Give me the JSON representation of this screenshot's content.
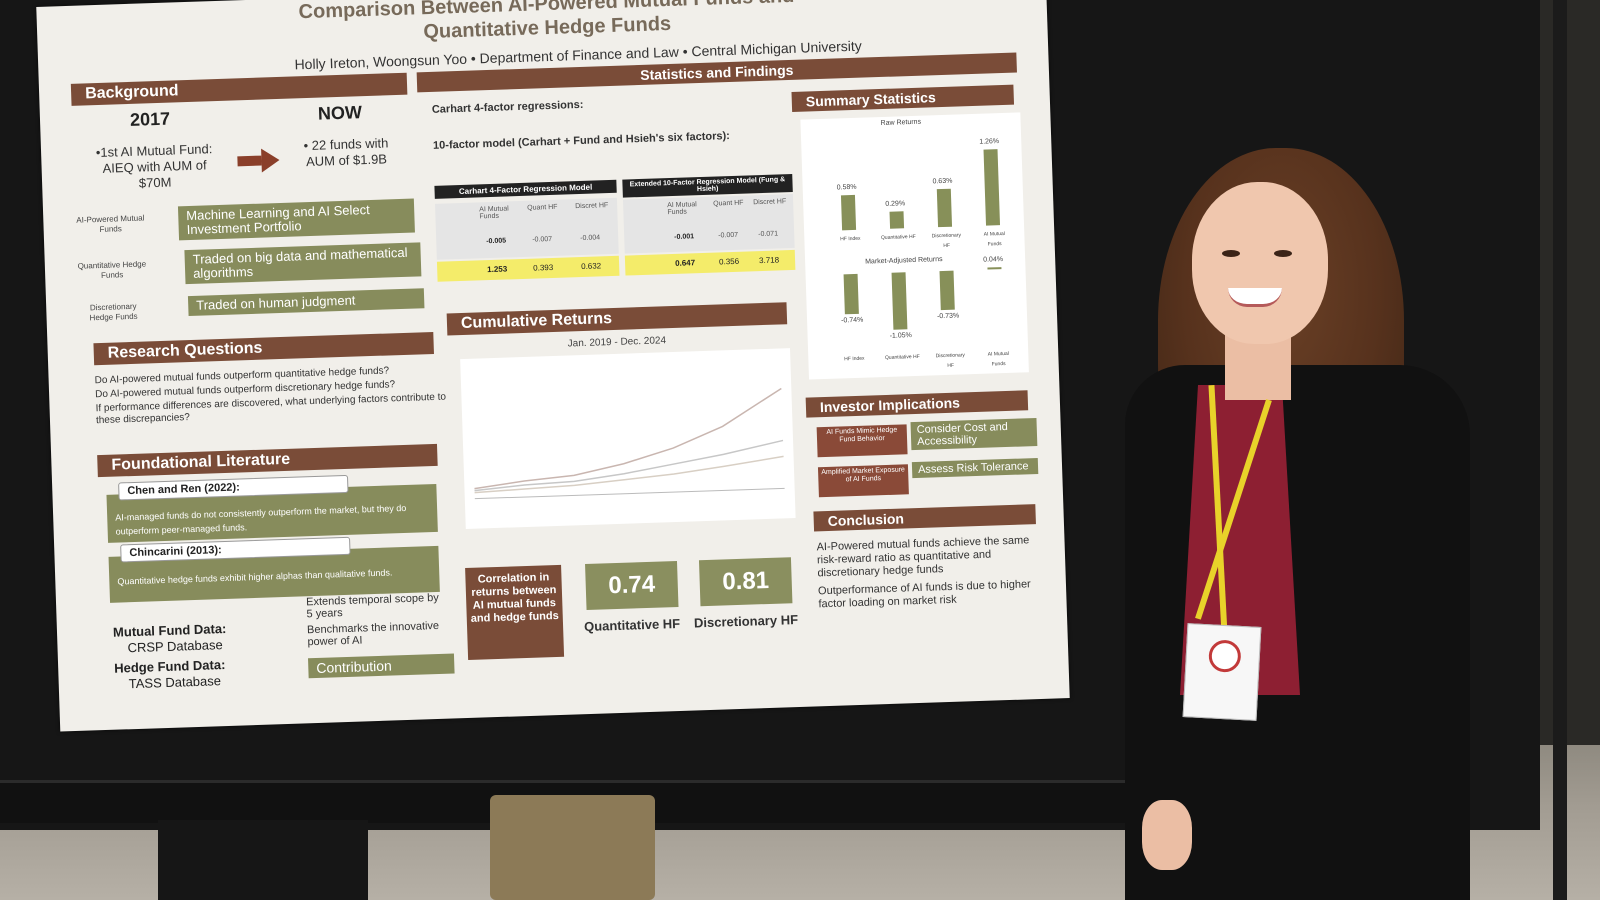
{
  "poster": {
    "title_line1": "Comparison Between AI-Powered Mutual Funds and",
    "title_line2": "Quantitative Hedge Funds",
    "authors": "Holly Ireton, Woongsun Yoo  •  Department of Finance and Law  •  Central Michigan University",
    "background": {
      "heading": "Background",
      "year_then": "2017",
      "year_now": "NOW",
      "then_text": "•1st AI Mutual Fund: AIEQ with AUM of $70M",
      "now_text": "• 22 funds with AUM of $1.9B",
      "rows": [
        {
          "label": "AI-Powered Mutual Funds",
          "text": "Machine Learning and AI Select Investment Portfolio"
        },
        {
          "label": "Quantitative Hedge Funds",
          "text": "Traded on big data and mathematical algorithms"
        },
        {
          "label": "Discretionary Hedge Funds",
          "text": "Traded on human judgment"
        }
      ]
    },
    "research": {
      "heading": "Research Questions",
      "questions": [
        "Do AI-powered mutual funds outperform quantitative hedge funds?",
        "Do AI-powered mutual funds outperform discretionary hedge funds?",
        "If performance differences are discovered, what underlying factors contribute to these discrepancies?"
      ]
    },
    "literature": {
      "heading": "Foundational Literature",
      "items": [
        {
          "cite": "Chen and Ren (2022):",
          "text": "AI-managed funds do not consistently outperform the market, but they do outperform peer-managed funds."
        },
        {
          "cite": "Chincarini (2013):",
          "text": "Quantitative hedge funds exhibit higher alphas than qualitative funds."
        }
      ]
    },
    "data": {
      "mutual_label": "Mutual Fund Data:",
      "mutual_source": "CRSP Database",
      "hedge_label": "Hedge Fund Data:",
      "hedge_source": "TASS Database",
      "contribution_points": [
        "Extends temporal scope by 5 years",
        "Benchmarks the innovative power of AI"
      ],
      "contribution_label": "Contribution"
    },
    "stats": {
      "heading": "Statistics and Findings",
      "carhart_label": "Carhart 4-factor regressions:",
      "tenfactor_label": "10-factor model (Carhart + Fund and Hsieh's six factors):",
      "table1_title": "Carhart 4-Factor Regression Model",
      "table2_title": "Extended 10-Factor Regression Model (Fung & Hsieh)",
      "table_cols": [
        "AI Mutual Funds",
        "Quant HF",
        "Discret HF"
      ],
      "table1_alpha": [
        "-0.005",
        "-0.007",
        "-0.004"
      ],
      "table1_beta": [
        "1.253",
        "0.393",
        "0.632"
      ],
      "table2_alpha": [
        "-0.001",
        "-0.007",
        "-0.071"
      ],
      "table2_beta": [
        "0.647",
        "0.356",
        "3.718"
      ],
      "cumulative_heading": "Cumulative Returns",
      "cumulative_range": "Jan. 2019 - Dec. 2024",
      "correlation_label": "Correlation in returns between AI mutual funds and hedge funds",
      "corr_quant": "0.74",
      "corr_quant_label": "Quantitative HF",
      "corr_discret": "0.81",
      "corr_discret_label": "Discretionary HF"
    },
    "summary": {
      "heading": "Summary Statistics",
      "raw_title": "Raw Returns",
      "raw_labels": [
        "0.58%",
        "0.29%",
        "0.63%",
        "1.26%"
      ],
      "raw_values": [
        0.58,
        0.29,
        0.63,
        1.26
      ],
      "market_title": "Market-Adjusted Returns",
      "market_labels": [
        "-0.74%",
        "-1.05%",
        "-0.73%",
        "0.04%"
      ],
      "market_values": [
        -0.74,
        -1.05,
        -0.73,
        0.04
      ],
      "categories": [
        "HF Index",
        "Quantitative HF",
        "Discretionary HF",
        "AI Mutual Funds"
      ]
    },
    "implications": {
      "heading": "Investor Implications",
      "items": [
        {
          "box": "AI Funds Mimic Hedge Fund Behavior",
          "arrow": "Consider Cost and Accessibility"
        },
        {
          "box": "Amplified Market Exposure of AI Funds",
          "arrow": "Assess Risk Tolerance"
        }
      ]
    },
    "conclusion": {
      "heading": "Conclusion",
      "points": [
        "AI-Powered mutual funds achieve the same risk-reward ratio as quantitative and discretionary hedge funds",
        "Outperformance of AI funds is due to higher factor loading on market risk"
      ]
    }
  },
  "colors": {
    "band": "#7a4c38",
    "green": "#878c5c",
    "wall": "#161616"
  }
}
